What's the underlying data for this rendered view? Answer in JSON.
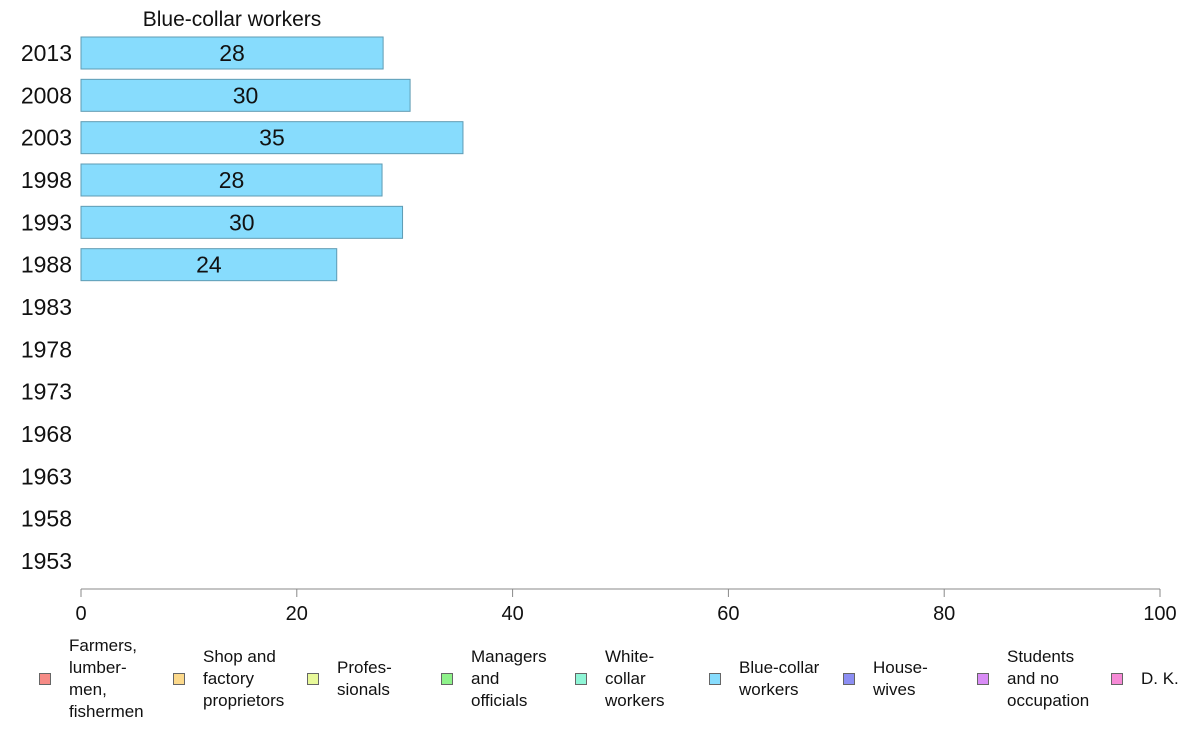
{
  "chart_data": {
    "type": "bar",
    "orientation": "horizontal",
    "title": "Blue-collar workers",
    "categories": [
      "2013",
      "2008",
      "2003",
      "1998",
      "1993",
      "1988",
      "1983",
      "1978",
      "1973",
      "1968",
      "1963",
      "1958",
      "1953"
    ],
    "series": [
      {
        "name": "Blue-collar workers",
        "color": "#87dcfd",
        "values": [
          28,
          30.5,
          35.4,
          27.9,
          29.8,
          23.7,
          null,
          null,
          null,
          null,
          null,
          null,
          null
        ],
        "labels": [
          "28",
          "30",
          "35",
          "28",
          "30",
          "24",
          "",
          "",
          "",
          "",
          "",
          "",
          ""
        ]
      }
    ],
    "xlim": [
      0,
      100
    ],
    "xticks": [
      "0",
      "20",
      "40",
      "60",
      "80",
      "100"
    ],
    "grid": false,
    "legend_position": "bottom"
  },
  "legend": [
    {
      "label": "Farmers,\nlumber-\nmen,\nfishermen",
      "color": "#f68b86"
    },
    {
      "label": "Shop and\nfactory\nproprietors",
      "color": "#fcd98b"
    },
    {
      "label": "Profes-\nsionals",
      "color": "#e8f99a"
    },
    {
      "label": "Managers\nand\nofficials",
      "color": "#8ef28a"
    },
    {
      "label": "White-\ncollar\nworkers",
      "color": "#8ff5d6"
    },
    {
      "label": "Blue-collar\nworkers",
      "color": "#87dcfd"
    },
    {
      "label": "House-\nwives",
      "color": "#8c8ef3"
    },
    {
      "label": "Students\nand no\noccupation",
      "color": "#d98cf6"
    },
    {
      "label": "D. K.",
      "color": "#f68ad6"
    }
  ]
}
